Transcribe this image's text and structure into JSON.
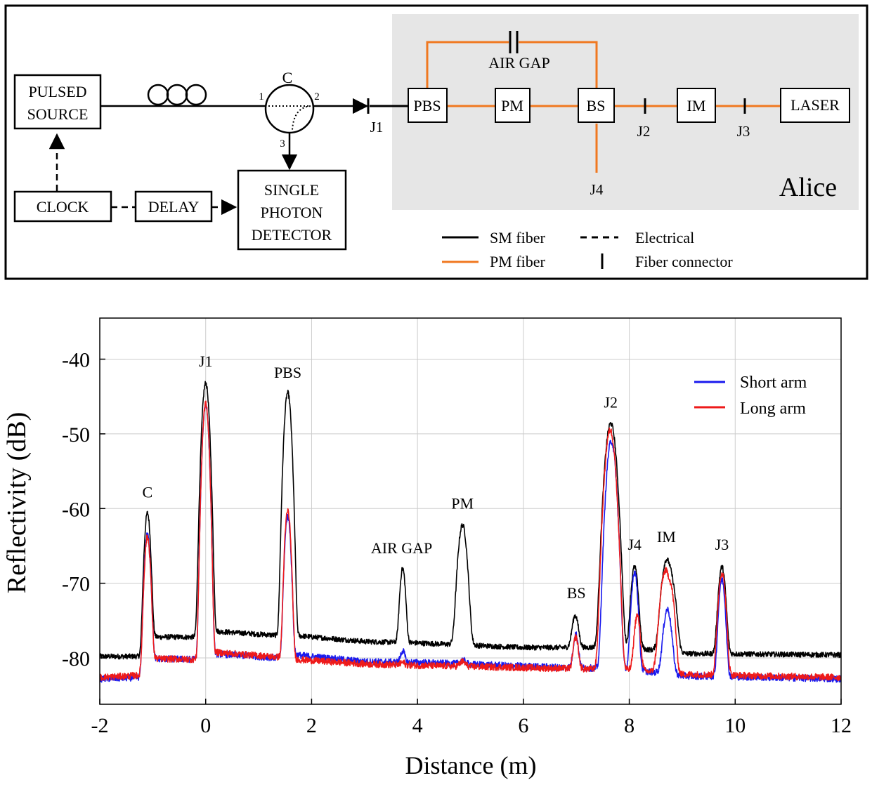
{
  "diagram": {
    "components": {
      "pulsed_source": [
        "PULSED",
        "SOURCE"
      ],
      "clock": "CLOCK",
      "delay": "DELAY",
      "detector": [
        "SINGLE",
        "PHOTON",
        "DETECTOR"
      ],
      "circulator": "C",
      "circulator_ports": [
        "1",
        "2",
        "3"
      ],
      "pbs": "PBS",
      "pm": "PM",
      "bs": "BS",
      "im": "IM",
      "laser": "LASER",
      "air_gap": "AIR GAP"
    },
    "connectors": [
      "J1",
      "J2",
      "J3",
      "J4"
    ],
    "region_label": "Alice",
    "legend": {
      "sm_fiber": "SM fiber",
      "pm_fiber": "PM fiber",
      "electrical": "Electrical",
      "fiber_connector": "Fiber connector"
    },
    "colors": {
      "sm_fiber": "#000000",
      "pm_fiber": "#f07820",
      "region": "#e6e6e6"
    }
  },
  "chart_data": {
    "type": "line",
    "xlabel": "Distance (m)",
    "ylabel": "Reflectivity (dB)",
    "xlim": [
      -2,
      12
    ],
    "ylim": [
      -86.2,
      -34.5
    ],
    "xticks": [
      -2,
      0,
      2,
      4,
      6,
      8,
      10,
      12
    ],
    "yticks": [
      -40,
      -50,
      -60,
      -70,
      -80
    ],
    "grid": true,
    "legend_position": "top-right",
    "peak_labels": [
      {
        "text": "C",
        "x": -1.1,
        "y": -58.5
      },
      {
        "text": "J1",
        "x": 0.0,
        "y": -41.0
      },
      {
        "text": "PBS",
        "x": 1.55,
        "y": -42.5
      },
      {
        "text": "AIR GAP",
        "x": 3.7,
        "y": -66.0
      },
      {
        "text": "PM",
        "x": 4.85,
        "y": -60.0
      },
      {
        "text": "BS",
        "x": 7.0,
        "y": -72.0
      },
      {
        "text": "J2",
        "x": 7.65,
        "y": -46.5
      },
      {
        "text": "J4",
        "x": 8.1,
        "y": -65.5
      },
      {
        "text": "IM",
        "x": 8.7,
        "y": -64.5
      },
      {
        "text": "J3",
        "x": 9.75,
        "y": -65.5
      }
    ],
    "series": [
      {
        "name": "",
        "color": "#000000",
        "baseline": [
          [
            -2,
            -79.8
          ],
          [
            -1.15,
            -79.8
          ],
          [
            -1.0,
            -77.2
          ],
          [
            -0.1,
            -77.2
          ],
          [
            0.1,
            -76.4
          ],
          [
            1.4,
            -77.0
          ],
          [
            1.7,
            -77.0
          ],
          [
            3.0,
            -77.8
          ],
          [
            4.0,
            -78.0
          ],
          [
            6.0,
            -78.6
          ],
          [
            8.0,
            -78.6
          ],
          [
            9.0,
            -79.4
          ],
          [
            12,
            -79.6
          ]
        ],
        "peaks": [
          [
            -1.1,
            -60.6,
            0.04
          ],
          [
            0.0,
            -43.2,
            0.045
          ],
          [
            1.55,
            -44.5,
            0.045
          ],
          [
            3.72,
            -68.0,
            0.04
          ],
          [
            4.85,
            -62.2,
            0.06
          ],
          [
            6.98,
            -74.3,
            0.05
          ],
          [
            7.65,
            -48.6,
            0.07
          ],
          [
            8.1,
            -67.8,
            0.05
          ],
          [
            8.7,
            -67.0,
            0.07
          ],
          [
            8.82,
            -71.5,
            0.06
          ],
          [
            9.75,
            -67.8,
            0.05
          ]
        ],
        "noise": 0.35
      },
      {
        "name": "Short arm",
        "color": "#1a1aee",
        "baseline": [
          [
            -2,
            -82.8
          ],
          [
            -1.15,
            -82.6
          ],
          [
            -1.0,
            -80.1
          ],
          [
            -0.1,
            -80.2
          ],
          [
            0.1,
            -79.4
          ],
          [
            1.4,
            -80.0
          ],
          [
            1.7,
            -79.6
          ],
          [
            3.0,
            -80.5
          ],
          [
            4.0,
            -80.6
          ],
          [
            6.0,
            -81.1
          ],
          [
            8.0,
            -81.5
          ],
          [
            9.0,
            -82.4
          ],
          [
            12,
            -82.8
          ]
        ],
        "peaks": [
          [
            -1.1,
            -63.5,
            0.04
          ],
          [
            0.0,
            -46.0,
            0.04
          ],
          [
            1.55,
            -61.0,
            0.04
          ],
          [
            3.72,
            -79.0,
            0.035
          ],
          [
            4.85,
            -80.3,
            0.05
          ],
          [
            6.99,
            -76.8,
            0.04
          ],
          [
            7.66,
            -51.0,
            0.06
          ],
          [
            8.1,
            -68.5,
            0.045
          ],
          [
            8.72,
            -73.5,
            0.06
          ],
          [
            9.75,
            -69.5,
            0.045
          ]
        ],
        "noise": 0.45
      },
      {
        "name": "Long arm",
        "color": "#ee1a1a",
        "baseline": [
          [
            -2,
            -82.6
          ],
          [
            -1.15,
            -82.3
          ],
          [
            -1.0,
            -80.1
          ],
          [
            -0.1,
            -80.2
          ],
          [
            0.1,
            -79.2
          ],
          [
            1.4,
            -79.9
          ],
          [
            1.7,
            -80.2
          ],
          [
            3.0,
            -80.8
          ],
          [
            4.0,
            -81.0
          ],
          [
            6.0,
            -81.3
          ],
          [
            8.0,
            -81.6
          ],
          [
            9.0,
            -82.2
          ],
          [
            12,
            -82.6
          ]
        ],
        "peaks": [
          [
            -1.1,
            -63.8,
            0.04
          ],
          [
            0.0,
            -46.0,
            0.04
          ],
          [
            1.55,
            -60.3,
            0.04
          ],
          [
            3.72,
            -80.6,
            0.035
          ],
          [
            4.85,
            -80.5,
            0.05
          ],
          [
            6.99,
            -77.2,
            0.04
          ],
          [
            7.64,
            -49.5,
            0.065
          ],
          [
            8.15,
            -74.3,
            0.045
          ],
          [
            8.68,
            -68.4,
            0.07
          ],
          [
            8.8,
            -72.5,
            0.05
          ],
          [
            9.75,
            -68.6,
            0.05
          ]
        ],
        "noise": 0.45
      }
    ]
  }
}
